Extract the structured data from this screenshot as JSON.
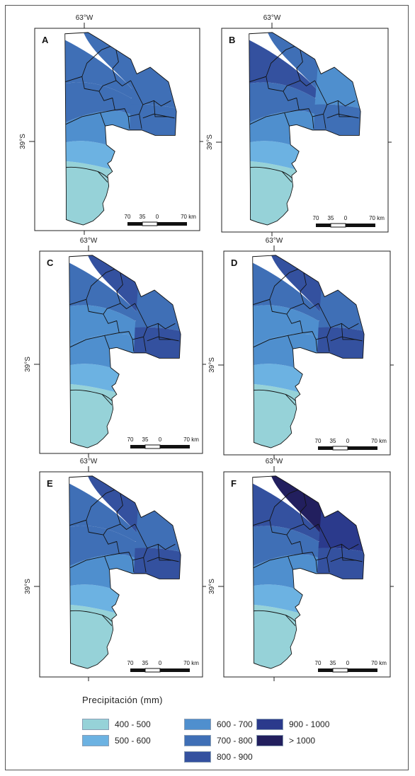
{
  "lon_label": "63°W",
  "lat_label": "39°S",
  "panels": [
    {
      "letter": "A",
      "zones": [
        "400 - 500",
        "500 - 600",
        "600 - 700",
        "700 - 800",
        "700 - 800",
        "700 - 800",
        "700 - 800",
        "700 - 800"
      ]
    },
    {
      "letter": "B",
      "zones": [
        "400 - 500",
        "500 - 600",
        "600 - 700",
        "700 - 800",
        "800 - 900",
        "700 - 800",
        "600 - 700",
        "700 - 800"
      ]
    },
    {
      "letter": "C",
      "zones": [
        "400 - 500",
        "500 - 600",
        "600 - 700",
        "600 - 700",
        "700 - 800",
        "800 - 900",
        "700 - 800",
        "800 - 900"
      ]
    },
    {
      "letter": "D",
      "zones": [
        "400 - 500",
        "500 - 600",
        "600 - 700",
        "600 - 700",
        "700 - 800",
        "800 - 900",
        "700 - 800",
        "800 - 900"
      ]
    },
    {
      "letter": "E",
      "zones": [
        "400 - 500",
        "500 - 600",
        "600 - 700",
        "700 - 800",
        "700 - 800",
        "800 - 900",
        "700 - 800",
        "800 - 900"
      ]
    },
    {
      "letter": "F",
      "zones": [
        "400 - 500",
        "500 - 600",
        "600 - 700",
        "700 - 800",
        "800 - 900",
        "> 1000",
        "900 - 1000",
        "800 - 900"
      ]
    }
  ],
  "scale_bar": {
    "labels": [
      "70",
      "35",
      "0",
      "70 km"
    ]
  },
  "legend": {
    "title": "Precipitación (mm)",
    "classes": [
      {
        "label": "400 - 500",
        "color": "#96d2d8"
      },
      {
        "label": "500 - 600",
        "color": "#6cb2e2"
      },
      {
        "label": "600 - 700",
        "color": "#4f8fce"
      },
      {
        "label": "700 - 800",
        "color": "#3f6fb6"
      },
      {
        "label": "800 - 900",
        "color": "#34519f"
      },
      {
        "label": "900 - 1000",
        "color": "#2b3a8c"
      },
      {
        "label": "> 1000",
        "color": "#221f5e"
      }
    ]
  }
}
